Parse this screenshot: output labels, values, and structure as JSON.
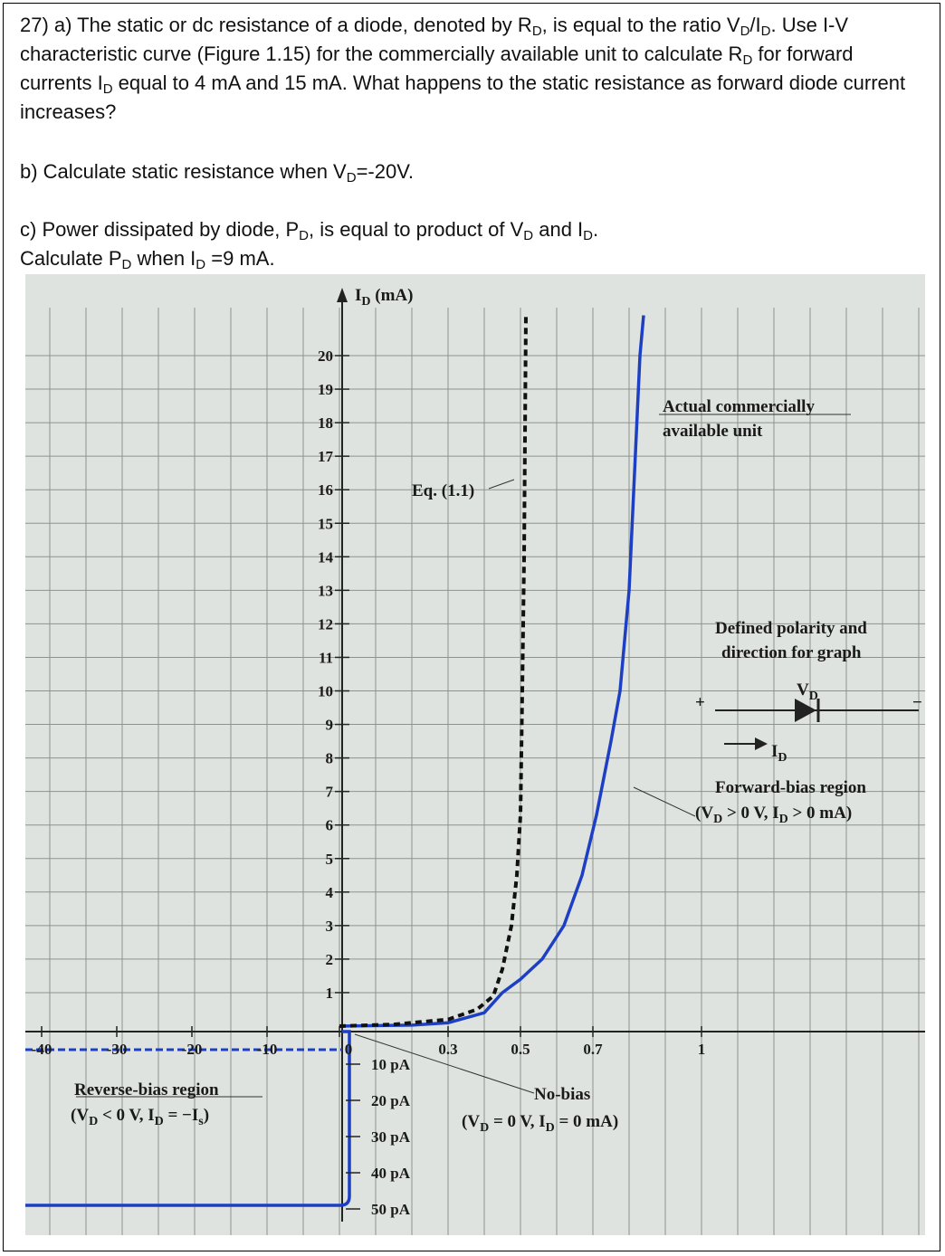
{
  "question": {
    "a": [
      "27) a) The static or dc resistance of a diode, denoted by R",
      "D",
      ", is equal to the ratio V",
      "D",
      "/I",
      "D",
      ". Use I-V characteristic curve (Figure 1.15) for the commercially available unit to calculate R",
      "D",
      " for forward currents I",
      "D",
      " equal to 4 mA and 15 mA. What happens to the static resistance as forward diode current increases?"
    ],
    "b": [
      "b) Calculate static resistance when V",
      "D",
      "=-20V."
    ],
    "c1": [
      "c) Power dissipated by diode, P",
      "D",
      ", is equal to product of V",
      "D",
      " and I",
      "D",
      "."
    ],
    "c2": [
      "Calculate P",
      "D",
      " when I",
      "D",
      " =9 mA."
    ]
  },
  "figure": {
    "type": "line",
    "y_label": [
      "I",
      "D",
      " (mA)"
    ],
    "xticks": [
      0,
      0.3,
      0.5,
      0.7,
      1
    ],
    "reverse_xticks": [
      -40,
      -30,
      -20,
      -10
    ],
    "yticks": [
      1,
      2,
      3,
      4,
      5,
      6,
      7,
      8,
      9,
      10,
      11,
      12,
      13,
      14,
      15,
      16,
      17,
      18,
      19,
      20
    ],
    "reverse_current_ticks": [
      "10 pA",
      "20 pA",
      "30 pA",
      "40 pA",
      "50 pA"
    ],
    "series": [
      {
        "color": "#1c3fc4",
        "x": [
          0,
          0.2,
          0.3,
          0.4,
          0.45,
          0.5,
          0.56,
          0.62,
          0.67,
          0.71,
          0.75,
          0.775,
          0.8,
          0.83,
          0.84
        ],
        "values": [
          0,
          0.03,
          0.1,
          0.4,
          1,
          1.4,
          2,
          3,
          4.5,
          6.3,
          8.5,
          10,
          13,
          20,
          21.2
        ]
      },
      {
        "color": "#111111",
        "dashed": true,
        "x": [
          0,
          0.15,
          0.3,
          0.38,
          0.425,
          0.45,
          0.475,
          0.49,
          0.5,
          0.505,
          0.51,
          0.515
        ],
        "values": [
          0,
          0.05,
          0.2,
          0.5,
          0.9,
          1.7,
          3,
          4.5,
          6.3,
          10,
          14,
          21.2
        ]
      }
    ],
    "annotations": {
      "eq": "Eq. (1.1)",
      "actual_1": "Actual commercially",
      "actual_2": "available unit",
      "polarity_1": "Defined polarity and",
      "polarity_2": "direction for graph",
      "plus": "+",
      "minus": "−",
      "vd": [
        "V",
        "D"
      ],
      "id": [
        "I",
        "D"
      ],
      "forward_1": "Forward-bias region",
      "forward_2": [
        "(V",
        "D",
        " > 0 V, I",
        "D",
        " > 0 mA)"
      ],
      "reverse_1": "Reverse-bias region",
      "reverse_2": [
        "(V",
        "D",
        " < 0 V, I",
        "D",
        " = −I",
        "s",
        ")"
      ],
      "nobias_1": "No-bias",
      "nobias_2": [
        "(V",
        "D",
        " = 0 V, I",
        "D",
        " = 0 mA)"
      ]
    }
  }
}
